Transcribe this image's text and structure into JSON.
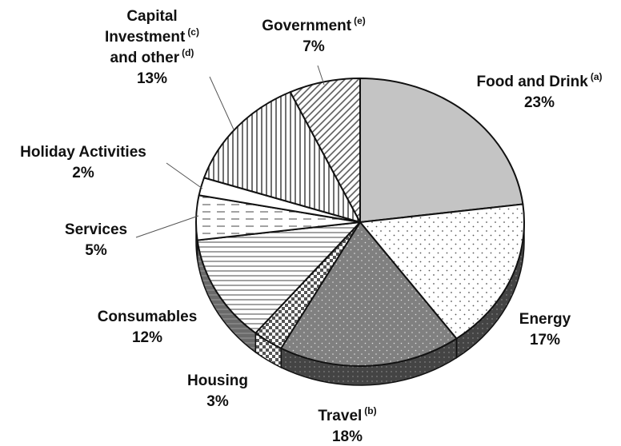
{
  "chart_data": {
    "type": "pie",
    "title": "",
    "start_angle_deg": 0,
    "direction": "clockwise",
    "slices": [
      {
        "label": "Food and Drink",
        "note": "(a)",
        "value": 23,
        "value_label": "23%",
        "pattern": "solid-light",
        "color": "#c4c4c4"
      },
      {
        "label": "Energy",
        "note": "",
        "value": 17,
        "value_label": "17%",
        "pattern": "dots-sparse",
        "color": "#ffffff"
      },
      {
        "label": "Travel",
        "note": "(b)",
        "value": 18,
        "value_label": "18%",
        "pattern": "dots-dark",
        "color": "#7a7a7a"
      },
      {
        "label": "Housing",
        "note": "",
        "value": 3,
        "value_label": "3%",
        "pattern": "checker",
        "color": "#bdbdbd"
      },
      {
        "label": "Consumables",
        "note": "",
        "value": 12,
        "value_label": "12%",
        "pattern": "horizontal-lines",
        "color": "#ffffff"
      },
      {
        "label": "Services",
        "note": "",
        "value": 5,
        "value_label": "5%",
        "pattern": "dashed-lines",
        "color": "#ffffff"
      },
      {
        "label": "Holiday Activities",
        "note": "",
        "value": 2,
        "value_label": "2%",
        "pattern": "solid-white",
        "color": "#ffffff"
      },
      {
        "label": "Capital Investment and other",
        "label_lines": [
          "Capital",
          "Investment",
          "and other"
        ],
        "note": "(c)",
        "note2": "(d)",
        "value": 13,
        "value_label": "13%",
        "pattern": "vertical-lines",
        "color": "#ffffff"
      },
      {
        "label": "Government",
        "note": "(e)",
        "value": 7,
        "value_label": "7%",
        "pattern": "diagonal-lines",
        "color": "#ffffff"
      }
    ],
    "legend": "none",
    "style": "3d-pie"
  }
}
